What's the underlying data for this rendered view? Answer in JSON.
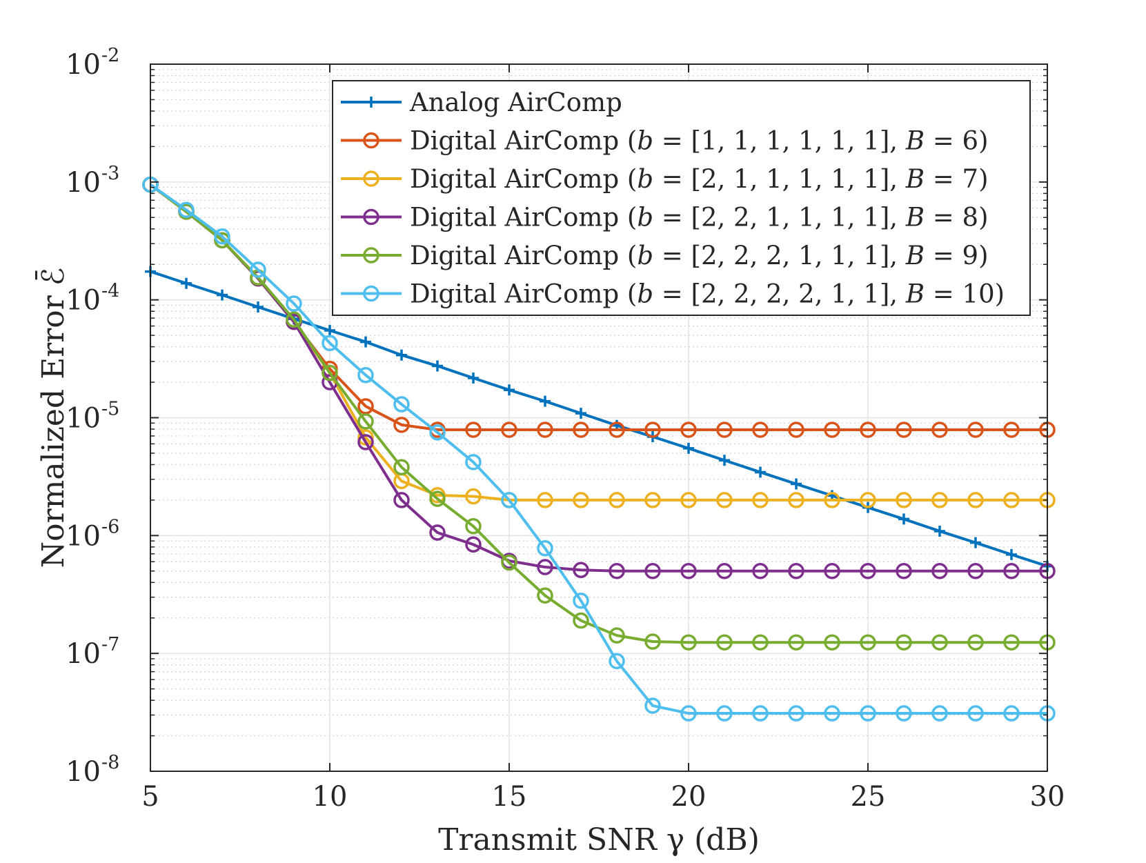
{
  "chart_data": {
    "type": "line",
    "xlabel": "Transmit SNR γ (dB)",
    "ylabel": "Normalized Error ℰ̄",
    "xlim": [
      5,
      30
    ],
    "ylim": [
      1e-08,
      0.01
    ],
    "yscale": "log",
    "grid": true,
    "legend_position": "top-right",
    "x_ticks": [
      5,
      10,
      15,
      20,
      25,
      30
    ],
    "y_ticks": [
      {
        "base": "10",
        "exp": "-8",
        "value": 1e-08
      },
      {
        "base": "10",
        "exp": "-7",
        "value": 1e-07
      },
      {
        "base": "10",
        "exp": "-6",
        "value": 1e-06
      },
      {
        "base": "10",
        "exp": "-5",
        "value": 1e-05
      },
      {
        "base": "10",
        "exp": "-4",
        "value": 0.0001
      },
      {
        "base": "10",
        "exp": "-3",
        "value": 0.001
      },
      {
        "base": "10",
        "exp": "-2",
        "value": 0.01
      }
    ],
    "x": [
      5,
      6,
      7,
      8,
      9,
      10,
      11,
      12,
      13,
      14,
      15,
      16,
      17,
      18,
      19,
      20,
      21,
      22,
      23,
      24,
      25,
      26,
      27,
      28,
      29,
      30
    ],
    "series": [
      {
        "name": "Analog AirComp",
        "color": "#0072BD",
        "marker": "plus",
        "values": [
          0.000174,
          0.000138,
          0.00011,
          8.7e-05,
          6.9e-05,
          5.5e-05,
          4.4e-05,
          3.4e-05,
          2.75e-05,
          2.17e-05,
          1.72e-05,
          1.38e-05,
          1.09e-05,
          8.6e-06,
          6.9e-06,
          5.5e-06,
          4.35e-06,
          3.45e-06,
          2.74e-06,
          2.18e-06,
          1.73e-06,
          1.38e-06,
          1.09e-06,
          8.7e-07,
          6.9e-07,
          5.5e-07
        ]
      },
      {
        "name": "Digital AirComp (b = [1, 1, 1, 1, 1, 1], B = 6)",
        "color": "#D95319",
        "marker": "circle",
        "values": [
          0.00095,
          0.00056,
          0.00032,
          0.000152,
          6.5e-05,
          2.6e-05,
          1.25e-05,
          8.7e-06,
          7.9e-06,
          7.9e-06,
          7.9e-06,
          7.9e-06,
          7.9e-06,
          7.9e-06,
          7.9e-06,
          7.9e-06,
          7.9e-06,
          7.9e-06,
          7.9e-06,
          7.9e-06,
          7.9e-06,
          7.9e-06,
          7.9e-06,
          7.9e-06,
          7.9e-06,
          7.9e-06
        ]
      },
      {
        "name": "Digital AirComp (b = [2, 1, 1, 1, 1, 1], B = 7)",
        "color": "#EDB120",
        "marker": "circle",
        "values": [
          0.00095,
          0.00056,
          0.00032,
          0.000152,
          6.5e-05,
          2.4e-05,
          6.8e-06,
          2.9e-06,
          2.2e-06,
          2.15e-06,
          2e-06,
          2e-06,
          2e-06,
          2e-06,
          2e-06,
          2e-06,
          2e-06,
          2e-06,
          2e-06,
          2e-06,
          2e-06,
          2e-06,
          2e-06,
          2e-06,
          2e-06,
          2e-06
        ]
      },
      {
        "name": "Digital AirComp (b = [2, 2, 1, 1, 1, 1], B = 8)",
        "color": "#7E2F8E",
        "marker": "circle",
        "values": [
          0.00095,
          0.00056,
          0.00032,
          0.000152,
          6.5e-05,
          2e-05,
          6.2e-06,
          2e-06,
          1.06e-06,
          8.4e-07,
          6.1e-07,
          5.4e-07,
          5.1e-07,
          5e-07,
          5e-07,
          5e-07,
          5e-07,
          5e-07,
          5e-07,
          5e-07,
          5e-07,
          5e-07,
          5e-07,
          5e-07,
          5e-07,
          5e-07
        ]
      },
      {
        "name": "Digital AirComp (b = [2, 2, 2, 1, 1, 1], B = 9)",
        "color": "#77AC30",
        "marker": "circle",
        "values": [
          0.00095,
          0.00056,
          0.00032,
          0.000155,
          6.8e-05,
          2.4e-05,
          9.3e-06,
          3.8e-06,
          2.05e-06,
          1.2e-06,
          5.9e-07,
          3.1e-07,
          1.9e-07,
          1.42e-07,
          1.26e-07,
          1.24e-07,
          1.24e-07,
          1.24e-07,
          1.24e-07,
          1.24e-07,
          1.24e-07,
          1.24e-07,
          1.24e-07,
          1.24e-07,
          1.24e-07,
          1.24e-07
        ]
      },
      {
        "name": "Digital AirComp (b = [2, 2, 2, 2, 1, 1], B = 10)",
        "color": "#4DBEEE",
        "marker": "circle",
        "values": [
          0.00095,
          0.00058,
          0.000345,
          0.00018,
          9.3e-05,
          4.3e-05,
          2.3e-05,
          1.3e-05,
          7.5e-06,
          4.2e-06,
          2e-06,
          7.8e-07,
          2.8e-07,
          8.6e-08,
          3.6e-08,
          3.1e-08,
          3.1e-08,
          3.1e-08,
          3.1e-08,
          3.1e-08,
          3.1e-08,
          3.1e-08,
          3.1e-08,
          3.1e-08,
          3.1e-08,
          3.1e-08
        ]
      }
    ],
    "legend": {
      "entries": [
        {
          "text": "Analog AirComp"
        },
        {
          "prefix": "Digital AirComp (",
          "var_b": "b",
          "eq1": " = [1, 1, 1, 1, 1, 1], ",
          "var_B": "B",
          "eq2": " = 6)"
        },
        {
          "prefix": "Digital AirComp (",
          "var_b": "b",
          "eq1": " = [2, 1, 1, 1, 1, 1], ",
          "var_B": "B",
          "eq2": " = 7)"
        },
        {
          "prefix": "Digital AirComp (",
          "var_b": "b",
          "eq1": " = [2, 2, 1, 1, 1, 1], ",
          "var_B": "B",
          "eq2": " = 8)"
        },
        {
          "prefix": "Digital AirComp (",
          "var_b": "b",
          "eq1": " = [2, 2, 2, 1, 1, 1], ",
          "var_B": "B",
          "eq2": " = 9)"
        },
        {
          "prefix": "Digital AirComp (",
          "var_b": "b",
          "eq1": " = [2, 2, 2, 2, 1, 1], ",
          "var_B": "B",
          "eq2": " = 10)"
        }
      ]
    }
  }
}
